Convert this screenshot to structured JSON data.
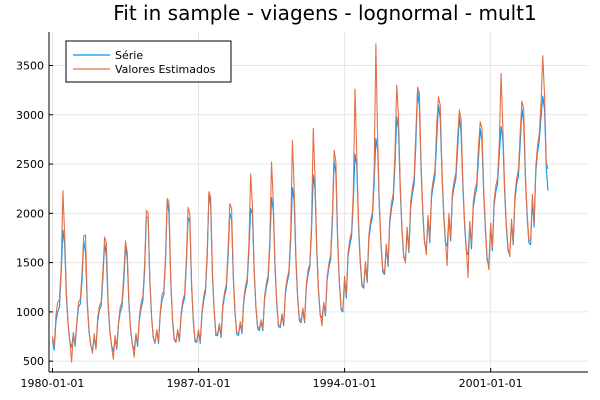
{
  "chart_data": {
    "type": "line",
    "title": "Fit in sample - viagens - lognormal - mult1",
    "xlabel": "",
    "ylabel": "",
    "x_ticks": [
      "1980-01-01",
      "1987-01-01",
      "1994-01-01",
      "2001-01-01"
    ],
    "x_tick_month_index": [
      0,
      84,
      168,
      252
    ],
    "y_ticks": [
      500,
      1000,
      1500,
      2000,
      2500,
      3000,
      3500
    ],
    "xlim_month_index": [
      -2,
      308
    ],
    "ylim": [
      390,
      3840
    ],
    "grid": true,
    "legend_position": "top-left",
    "start": "1980-01",
    "end": "2005-08",
    "frequency": "monthly",
    "series": [
      {
        "name": "Série",
        "color": "#009AFA",
        "values": [
          720,
          610,
          900,
          1000,
          1050,
          1380,
          1830,
          1680,
          1150,
          870,
          690,
          640,
          780,
          650,
          880,
          1050,
          1080,
          1320,
          1720,
          1600,
          1080,
          800,
          660,
          620,
          730,
          630,
          900,
          1020,
          1060,
          1340,
          1700,
          1560,
          1060,
          800,
          660,
          600,
          720,
          620,
          880,
          1000,
          1050,
          1300,
          1660,
          1540,
          1060,
          800,
          660,
          620,
          760,
          650,
          920,
          1040,
          1110,
          1420,
          1960,
          1960,
          1300,
          940,
          730,
          700,
          800,
          680,
          980,
          1120,
          1170,
          1500,
          2130,
          2000,
          1310,
          920,
          720,
          690,
          800,
          700,
          960,
          1080,
          1140,
          1480,
          1960,
          1910,
          1260,
          900,
          700,
          690,
          800,
          680,
          980,
          1120,
          1200,
          1560,
          2200,
          2080,
          1360,
          1000,
          760,
          760,
          860,
          740,
          1050,
          1160,
          1240,
          1560,
          2000,
          1940,
          1340,
          980,
          770,
          760,
          880,
          780,
          1100,
          1220,
          1300,
          1620,
          2050,
          1990,
          1400,
          1040,
          830,
          810,
          900,
          810,
          1130,
          1250,
          1330,
          1660,
          2160,
          2030,
          1440,
          1080,
          850,
          840,
          960,
          860,
          1190,
          1300,
          1380,
          1720,
          2260,
          2130,
          1520,
          1140,
          910,
          890,
          1020,
          890,
          1250,
          1380,
          1450,
          1820,
          2390,
          2250,
          1610,
          1210,
          960,
          940,
          1080,
          960,
          1330,
          1450,
          1530,
          1920,
          2530,
          2400,
          1710,
          1290,
          1020,
          1000,
          1320,
          1140,
          1560,
          1680,
          1760,
          2100,
          2600,
          2480,
          1880,
          1500,
          1260,
          1240,
          1480,
          1300,
          1740,
          1880,
          1960,
          2300,
          2760,
          2640,
          2050,
          1660,
          1400,
          1380,
          1660,
          1460,
          1900,
          2050,
          2140,
          2500,
          2980,
          2850,
          2240,
          1820,
          1550,
          1520,
          1820,
          1600,
          2060,
          2200,
          2300,
          2700,
          3250,
          3080,
          2440,
          1990,
          1690,
          1650,
          1940,
          1700,
          2160,
          2280,
          2380,
          2750,
          3100,
          2970,
          2400,
          1980,
          1700,
          1670,
          1960,
          1720,
          2160,
          2270,
          2350,
          2640,
          2980,
          2820,
          2280,
          1880,
          1620,
          1580,
          1880,
          1640,
          2060,
          2180,
          2250,
          2550,
          2860,
          2730,
          2200,
          1820,
          1520,
          1480,
          1860,
          1620,
          2080,
          2220,
          2300,
          2600,
          2880,
          2760,
          2240,
          1860,
          1620,
          1580,
          1900,
          1680,
          2140,
          2300,
          2380,
          2700,
          3060,
          2920,
          2340,
          1960,
          1700,
          1680,
          2140,
          1860,
          2420,
          2620,
          2740,
          2980,
          3190,
          3050,
          2460,
          2230
        ]
      },
      {
        "name": "Valores Estimados",
        "color": "#E26F46",
        "values": [
          750,
          650,
          960,
          1100,
          1120,
          1450,
          2230,
          1780,
          1200,
          880,
          700,
          490,
          790,
          680,
          900,
          1100,
          1130,
          1400,
          1770,
          1780,
          1120,
          820,
          670,
          580,
          780,
          620,
          940,
          1060,
          1100,
          1420,
          1760,
          1700,
          1100,
          810,
          650,
          520,
          760,
          640,
          900,
          1050,
          1100,
          1380,
          1720,
          1600,
          1090,
          820,
          670,
          540,
          780,
          670,
          950,
          1100,
          1160,
          1480,
          2030,
          2000,
          1330,
          960,
          740,
          680,
          820,
          700,
          1000,
          1180,
          1210,
          1560,
          2150,
          2120,
          1350,
          940,
          740,
          690,
          820,
          720,
          990,
          1120,
          1180,
          1540,
          2060,
          1990,
          1300,
          920,
          720,
          700,
          820,
          700,
          1010,
          1160,
          1240,
          1620,
          2220,
          2160,
          1400,
          1020,
          780,
          780,
          880,
          760,
          1080,
          1200,
          1280,
          1640,
          2100,
          2050,
          1380,
          1000,
          790,
          780,
          900,
          800,
          1130,
          1260,
          1340,
          1700,
          2400,
          2080,
          1440,
          1060,
          850,
          830,
          920,
          830,
          1160,
          1290,
          1370,
          1740,
          2520,
          2120,
          1480,
          1100,
          870,
          860,
          980,
          880,
          1220,
          1340,
          1420,
          1800,
          2740,
          2240,
          1560,
          1160,
          930,
          910,
          1040,
          910,
          1280,
          1420,
          1490,
          1900,
          2860,
          2360,
          1650,
          1230,
          980,
          860,
          1100,
          980,
          1360,
          1490,
          1580,
          2000,
          2640,
          2520,
          1760,
          1310,
          1040,
          1020,
          1360,
          1170,
          1600,
          1730,
          1810,
          2200,
          3260,
          2600,
          1930,
          1530,
          1280,
          1260,
          1510,
          1330,
          1790,
          1930,
          2010,
          2420,
          3720,
          2760,
          2100,
          1690,
          1430,
          1400,
          1690,
          1490,
          1950,
          2110,
          2200,
          2620,
          3300,
          2980,
          2300,
          1850,
          1580,
          1500,
          1860,
          1630,
          2110,
          2260,
          2360,
          2830,
          3280,
          3220,
          2500,
          2030,
          1720,
          1580,
          1980,
          1740,
          2210,
          2340,
          2440,
          2900,
          3180,
          3100,
          2460,
          2020,
          1730,
          1470,
          2000,
          1760,
          2210,
          2330,
          2410,
          2760,
          3050,
          2950,
          2340,
          1920,
          1650,
          1350,
          1920,
          1680,
          2110,
          2240,
          2310,
          2670,
          2930,
          2860,
          2260,
          1860,
          1550,
          1430,
          1900,
          1650,
          2130,
          2280,
          2360,
          2720,
          3420,
          2890,
          2300,
          1900,
          1650,
          1560,
          1940,
          1710,
          2190,
          2360,
          2440,
          2820,
          3140,
          3060,
          2400,
          2000,
          1730,
          1720,
          2190,
          1900,
          2480,
          2690,
          2810,
          3120,
          3600,
          3200,
          2520,
          2450
        ]
      }
    ]
  }
}
